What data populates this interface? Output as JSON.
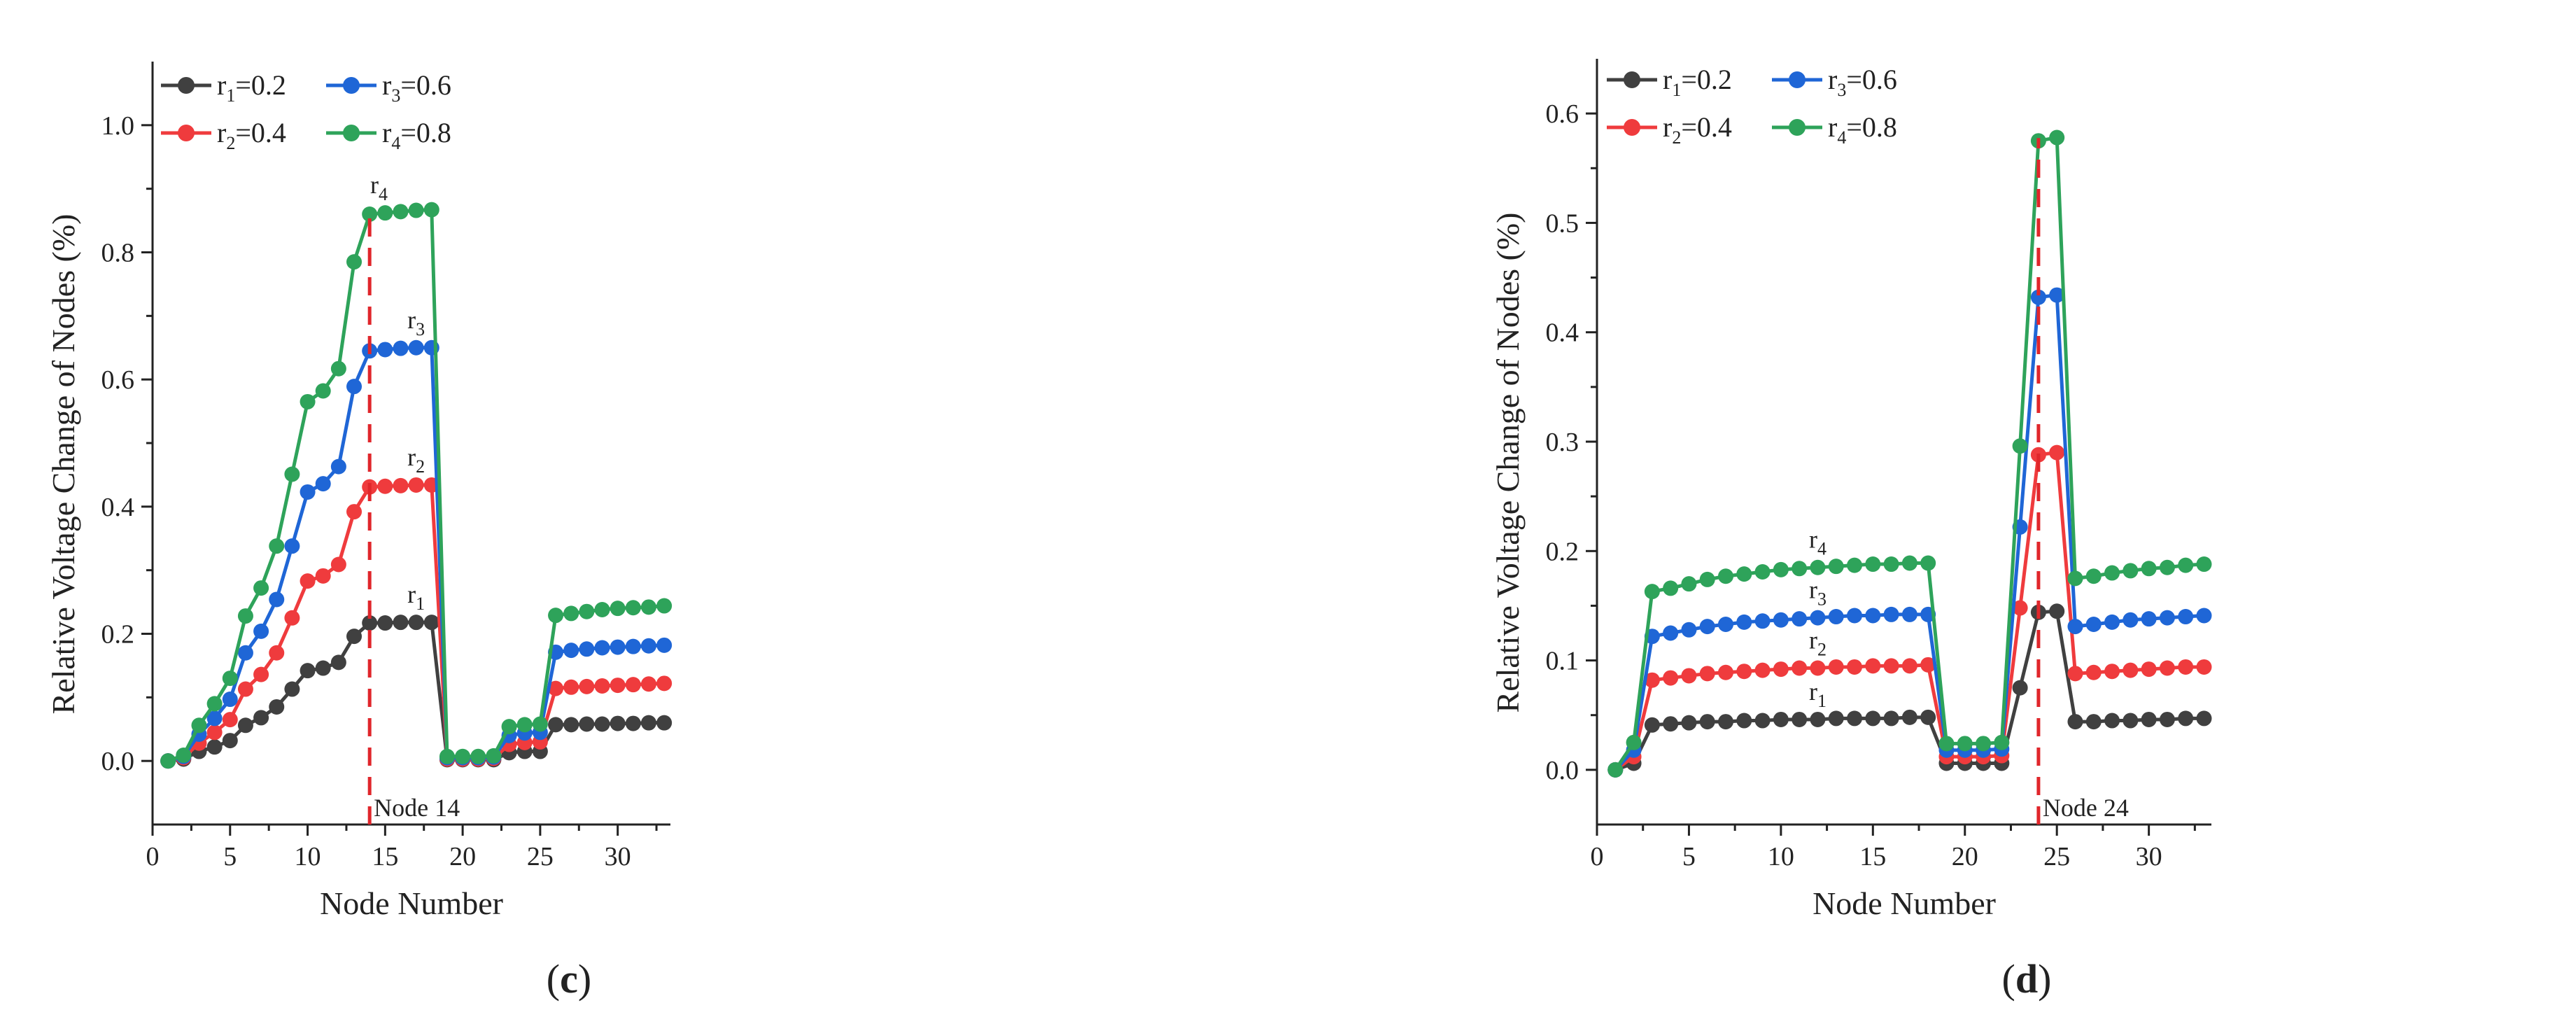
{
  "colors": {
    "r1": "#404040",
    "r2": "#ef3b3d",
    "r3": "#1f66d6",
    "r4": "#2ea35a",
    "marker_line": "#e0262b"
  },
  "chart_data": [
    {
      "type": "line",
      "panel_label": "(c)",
      "panel_label_parts": {
        "open": "(",
        "letter": "c",
        "close": ")"
      },
      "xlabel": "Node Number",
      "ylabel": "Relative Voltage Change of Nodes (%)",
      "xlim": [
        0,
        33.4
      ],
      "ylim": [
        -0.1,
        1.1
      ],
      "xticks": [
        0,
        5,
        10,
        15,
        20,
        25,
        30
      ],
      "xtick_labels": [
        "0",
        "5",
        "10",
        "15",
        "20",
        "25",
        "30"
      ],
      "yticks": [
        0.0,
        0.2,
        0.4,
        0.6,
        0.8,
        1.0
      ],
      "ytick_labels": [
        "0.0",
        "0.2",
        "0.4",
        "0.6",
        "0.8",
        "1.0"
      ],
      "x": [
        1,
        2,
        3,
        4,
        5,
        6,
        7,
        8,
        9,
        10,
        11,
        12,
        13,
        14,
        15,
        16,
        17,
        18,
        19,
        20,
        21,
        22,
        23,
        24,
        25,
        26,
        27,
        28,
        29,
        30,
        31,
        32,
        33
      ],
      "series": [
        {
          "name": "r1=0.2",
          "base": "r",
          "sub": "1",
          "suffix": "=0.2",
          "color_key": "r1",
          "label_at": 17,
          "values": [
            0,
            0.003,
            0.015,
            0.022,
            0.032,
            0.056,
            0.068,
            0.085,
            0.113,
            0.142,
            0.146,
            0.155,
            0.196,
            0.217,
            0.217,
            0.218,
            0.218,
            0.218,
            0.002,
            0.002,
            0.002,
            0.002,
            0.013,
            0.015,
            0.015,
            0.057,
            0.057,
            0.058,
            0.058,
            0.059,
            0.059,
            0.06,
            0.06
          ]
        },
        {
          "name": "r2=0.4",
          "base": "r",
          "sub": "2",
          "suffix": "=0.4",
          "color_key": "r2",
          "label_at": 17,
          "values": [
            0,
            0.005,
            0.028,
            0.045,
            0.065,
            0.113,
            0.136,
            0.17,
            0.225,
            0.283,
            0.291,
            0.309,
            0.392,
            0.431,
            0.432,
            0.433,
            0.434,
            0.434,
            0.003,
            0.003,
            0.003,
            0.004,
            0.026,
            0.029,
            0.03,
            0.114,
            0.116,
            0.117,
            0.118,
            0.119,
            0.12,
            0.121,
            0.122
          ]
        },
        {
          "name": "r3=0.6",
          "base": "r",
          "sub": "3",
          "suffix": "=0.6",
          "color_key": "r3",
          "label_at": 17,
          "values": [
            0,
            0.007,
            0.042,
            0.067,
            0.097,
            0.17,
            0.204,
            0.254,
            0.338,
            0.423,
            0.436,
            0.463,
            0.589,
            0.645,
            0.647,
            0.649,
            0.65,
            0.65,
            0.005,
            0.005,
            0.005,
            0.006,
            0.04,
            0.044,
            0.045,
            0.171,
            0.174,
            0.176,
            0.178,
            0.179,
            0.18,
            0.181,
            0.182
          ]
        },
        {
          "name": "r4=0.8",
          "base": "r",
          "sub": "4",
          "suffix": "=0.8",
          "color_key": "r4",
          "label_at": 14.6,
          "values": [
            0,
            0.009,
            0.056,
            0.09,
            0.13,
            0.228,
            0.272,
            0.338,
            0.451,
            0.565,
            0.582,
            0.617,
            0.785,
            0.86,
            0.862,
            0.864,
            0.866,
            0.867,
            0.007,
            0.007,
            0.007,
            0.008,
            0.054,
            0.057,
            0.058,
            0.229,
            0.232,
            0.235,
            0.238,
            0.24,
            0.241,
            0.242,
            0.244
          ]
        }
      ],
      "legend": [
        {
          "base": "r",
          "sub": "1",
          "suffix": "=0.2",
          "color_key": "r1"
        },
        {
          "base": "r",
          "sub": "3",
          "suffix": "=0.6",
          "color_key": "r3"
        },
        {
          "base": "r",
          "sub": "2",
          "suffix": "=0.4",
          "color_key": "r2"
        },
        {
          "base": "r",
          "sub": "4",
          "suffix": "=0.8",
          "color_key": "r4"
        }
      ],
      "marker_node": 14,
      "marker_label": "Node 14"
    },
    {
      "type": "line",
      "panel_label": "(d)",
      "panel_label_parts": {
        "open": "(",
        "letter": "d",
        "close": ")"
      },
      "xlabel": "Node Number",
      "ylabel": "Relative Voltage Change of Nodes (%)",
      "xlim": [
        0,
        33.4
      ],
      "ylim": [
        -0.05,
        0.65
      ],
      "xticks": [
        0,
        5,
        10,
        15,
        20,
        25,
        30
      ],
      "xtick_labels": [
        "0",
        "5",
        "10",
        "15",
        "20",
        "25",
        "30"
      ],
      "yticks": [
        0.0,
        0.1,
        0.2,
        0.3,
        0.4,
        0.5,
        0.6
      ],
      "ytick_labels": [
        "0.0",
        "0.1",
        "0.2",
        "0.3",
        "0.4",
        "0.5",
        "0.6"
      ],
      "x": [
        1,
        2,
        3,
        4,
        5,
        6,
        7,
        8,
        9,
        10,
        11,
        12,
        13,
        14,
        15,
        16,
        17,
        18,
        19,
        20,
        21,
        22,
        23,
        24,
        25,
        26,
        27,
        28,
        29,
        30,
        31,
        32,
        33
      ],
      "series": [
        {
          "name": "r1=0.2",
          "base": "r",
          "sub": "1",
          "suffix": "=0.2",
          "color_key": "r1",
          "label_at": 12,
          "values": [
            0,
            0.006,
            0.041,
            0.042,
            0.043,
            0.044,
            0.044,
            0.045,
            0.045,
            0.046,
            0.046,
            0.046,
            0.047,
            0.047,
            0.047,
            0.047,
            0.048,
            0.048,
            0.006,
            0.006,
            0.006,
            0.006,
            0.075,
            0.144,
            0.145,
            0.044,
            0.044,
            0.045,
            0.045,
            0.046,
            0.046,
            0.047,
            0.047
          ]
        },
        {
          "name": "r2=0.4",
          "base": "r",
          "sub": "2",
          "suffix": "=0.4",
          "color_key": "r2",
          "label_at": 12,
          "values": [
            0,
            0.012,
            0.082,
            0.084,
            0.086,
            0.088,
            0.089,
            0.09,
            0.091,
            0.092,
            0.093,
            0.093,
            0.094,
            0.094,
            0.095,
            0.095,
            0.095,
            0.096,
            0.012,
            0.012,
            0.012,
            0.013,
            0.148,
            0.288,
            0.29,
            0.088,
            0.089,
            0.09,
            0.091,
            0.092,
            0.093,
            0.094,
            0.094
          ]
        },
        {
          "name": "r3=0.6",
          "base": "r",
          "sub": "3",
          "suffix": "=0.6",
          "color_key": "r3",
          "label_at": 12,
          "values": [
            0,
            0.018,
            0.122,
            0.125,
            0.128,
            0.131,
            0.133,
            0.135,
            0.136,
            0.137,
            0.138,
            0.139,
            0.14,
            0.141,
            0.141,
            0.142,
            0.142,
            0.142,
            0.018,
            0.018,
            0.018,
            0.019,
            0.222,
            0.432,
            0.434,
            0.131,
            0.133,
            0.135,
            0.137,
            0.138,
            0.139,
            0.14,
            0.141
          ]
        },
        {
          "name": "r4=0.8",
          "base": "r",
          "sub": "4",
          "suffix": "=0.8",
          "color_key": "r4",
          "label_at": 12,
          "values": [
            0,
            0.025,
            0.163,
            0.166,
            0.17,
            0.174,
            0.177,
            0.179,
            0.181,
            0.183,
            0.184,
            0.185,
            0.186,
            0.187,
            0.188,
            0.188,
            0.189,
            0.189,
            0.024,
            0.024,
            0.024,
            0.025,
            0.296,
            0.575,
            0.578,
            0.175,
            0.177,
            0.18,
            0.182,
            0.184,
            0.185,
            0.187,
            0.188
          ]
        }
      ],
      "legend": [
        {
          "base": "r",
          "sub": "1",
          "suffix": "=0.2",
          "color_key": "r1"
        },
        {
          "base": "r",
          "sub": "3",
          "suffix": "=0.6",
          "color_key": "r3"
        },
        {
          "base": "r",
          "sub": "2",
          "suffix": "=0.4",
          "color_key": "r2"
        },
        {
          "base": "r",
          "sub": "4",
          "suffix": "=0.8",
          "color_key": "r4"
        }
      ],
      "marker_node": 24,
      "marker_label": "Node 24"
    }
  ]
}
